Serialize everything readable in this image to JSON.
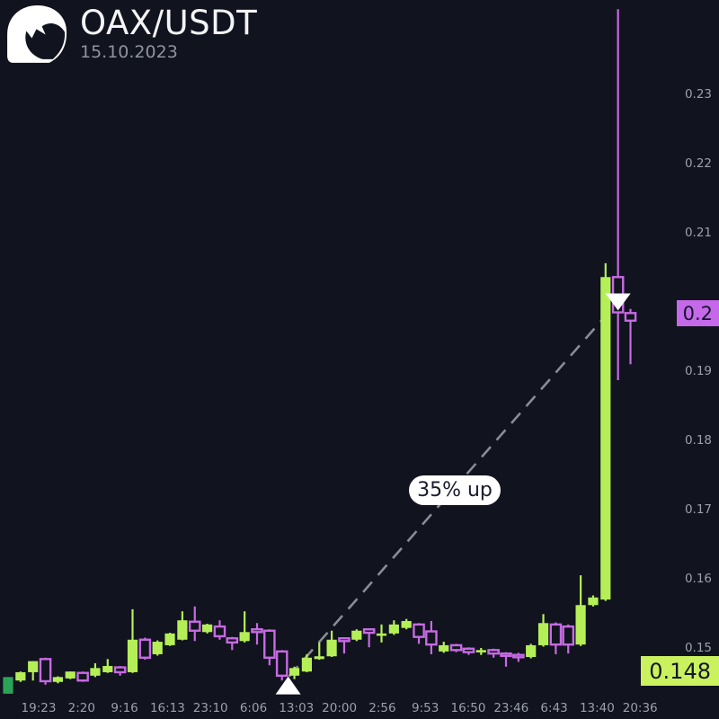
{
  "header": {
    "symbol": "OAX/USDT",
    "date": "15.10.2023",
    "logo_icon": "wave-icon"
  },
  "colors": {
    "background": "#11131f",
    "bullish": "#b5ef58",
    "bearish": "#c76ae3",
    "start_candle": "#2ca457",
    "axis_text": "#9ba0ab",
    "trend_line": "#8b8b95",
    "marker": "#ffffff",
    "last_price_tag_bg": "#c569ea",
    "base_price_tag_bg": "#c9f25e",
    "tag_text": "#14162b",
    "pill_bg": "#ffffff",
    "pill_text": "#181a2e"
  },
  "annotation": {
    "label": "35% up",
    "from_price": 0.148,
    "to_price": 0.2
  },
  "price_tags": {
    "last": "0.2",
    "base": "0.148"
  },
  "y_axis": {
    "ticks": [
      0.23,
      0.22,
      0.21,
      0.19,
      0.18,
      0.17,
      0.16,
      0.15
    ]
  },
  "x_axis": {
    "ticks": [
      "19:23",
      "2:20",
      "9:16",
      "16:13",
      "23:10",
      "6:06",
      "13:03",
      "20:00",
      "2:56",
      "9:53",
      "16:50",
      "23:46",
      "6:43",
      "13:40",
      "20:36"
    ]
  },
  "chart_data": {
    "type": "candlestick",
    "title": "OAX/USDT",
    "subtitle": "15.10.2023",
    "ylim": [
      0.1415,
      0.2435
    ],
    "grid": false,
    "legend": false,
    "markers": {
      "low": {
        "shape": "triangle-up",
        "candle_index": 22.5,
        "price": 0.1455
      },
      "high": {
        "shape": "triangle-down",
        "candle_index": 49,
        "price": 0.1985
      }
    },
    "trend_line": {
      "style": "dashed",
      "from_candle": 22.5,
      "from_price": 0.1455,
      "to_candle": 49,
      "to_price": 0.199
    },
    "candles": [
      [
        0.1434,
        0.1458,
        0.1434,
        0.1458,
        "s"
      ],
      [
        0.1453,
        0.1466,
        0.1451,
        0.1465,
        "u"
      ],
      [
        0.1465,
        0.1481,
        0.1453,
        0.1481,
        "u"
      ],
      [
        0.1484,
        0.1486,
        0.1447,
        0.1452,
        "d"
      ],
      [
        0.1451,
        0.1459,
        0.1449,
        0.1458,
        "u"
      ],
      [
        0.1456,
        0.1466,
        0.1455,
        0.1466,
        "u"
      ],
      [
        0.1464,
        0.1466,
        0.1451,
        0.1453,
        "d"
      ],
      [
        0.146,
        0.1478,
        0.1458,
        0.1471,
        "u"
      ],
      [
        0.1465,
        0.1484,
        0.1464,
        0.1474,
        "u"
      ],
      [
        0.1472,
        0.1474,
        0.146,
        0.1465,
        "d"
      ],
      [
        0.1465,
        0.1556,
        0.1464,
        0.1512,
        "u"
      ],
      [
        0.1512,
        0.1515,
        0.1483,
        0.1486,
        "d"
      ],
      [
        0.1491,
        0.1511,
        0.1489,
        0.1509,
        "u"
      ],
      [
        0.1504,
        0.1522,
        0.1503,
        0.1521,
        "u"
      ],
      [
        0.1512,
        0.1553,
        0.1511,
        0.154,
        "u"
      ],
      [
        0.1538,
        0.156,
        0.151,
        0.1525,
        "d"
      ],
      [
        0.1523,
        0.1535,
        0.1521,
        0.1534,
        "u"
      ],
      [
        0.1531,
        0.154,
        0.1512,
        0.1517,
        "d"
      ],
      [
        0.1514,
        0.1516,
        0.1497,
        0.1508,
        "d"
      ],
      [
        0.151,
        0.1553,
        0.1508,
        0.1523,
        "u"
      ],
      [
        0.1527,
        0.1536,
        0.1505,
        0.1523,
        "d"
      ],
      [
        0.1525,
        0.1527,
        0.1475,
        0.1486,
        "d"
      ],
      [
        0.1495,
        0.1497,
        0.1453,
        0.146,
        "d"
      ],
      [
        0.146,
        0.1473,
        0.1455,
        0.1471,
        "u"
      ],
      [
        0.1466,
        0.1491,
        0.1465,
        0.1486,
        "u"
      ],
      [
        0.1484,
        0.1508,
        0.1483,
        0.1488,
        "u"
      ],
      [
        0.1488,
        0.1525,
        0.1487,
        0.1512,
        "u"
      ],
      [
        0.1514,
        0.1515,
        0.1492,
        0.151,
        "d"
      ],
      [
        0.1512,
        0.1527,
        0.151,
        0.1525,
        "u"
      ],
      [
        0.1527,
        0.1528,
        0.1501,
        0.1522,
        "d"
      ],
      [
        0.1519,
        0.1534,
        0.1508,
        0.1521,
        "u"
      ],
      [
        0.1521,
        0.154,
        0.1519,
        0.1534,
        "u"
      ],
      [
        0.1529,
        0.1542,
        0.1527,
        0.1539,
        "u"
      ],
      [
        0.1534,
        0.1536,
        0.1506,
        0.1516,
        "d"
      ],
      [
        0.1524,
        0.1539,
        0.1491,
        0.1505,
        "d"
      ],
      [
        0.1495,
        0.1509,
        0.1493,
        0.1504,
        "u"
      ],
      [
        0.1504,
        0.1506,
        0.1494,
        0.1497,
        "d"
      ],
      [
        0.1499,
        0.1501,
        0.149,
        0.1494,
        "d"
      ],
      [
        0.1494,
        0.15,
        0.149,
        0.1497,
        "u"
      ],
      [
        0.1497,
        0.1499,
        0.1486,
        0.1492,
        "d"
      ],
      [
        0.1492,
        0.1494,
        0.1473,
        0.149,
        "d"
      ],
      [
        0.149,
        0.1493,
        0.148,
        0.1487,
        "d"
      ],
      [
        0.1487,
        0.1506,
        0.1485,
        0.1504,
        "u"
      ],
      [
        0.1504,
        0.1549,
        0.1502,
        0.1536,
        "u"
      ],
      [
        0.1534,
        0.1537,
        0.1491,
        0.1505,
        "d"
      ],
      [
        0.1531,
        0.1534,
        0.1492,
        0.1505,
        "d"
      ],
      [
        0.1505,
        0.1605,
        0.1503,
        0.1562,
        "u"
      ],
      [
        0.1562,
        0.1576,
        0.156,
        0.1573,
        "u"
      ],
      [
        0.157,
        0.2056,
        0.1568,
        0.2036,
        "u"
      ],
      [
        0.2036,
        0.2423,
        0.1887,
        0.1985,
        "d"
      ],
      [
        0.1984,
        0.199,
        0.191,
        0.1973,
        "d"
      ]
    ]
  }
}
